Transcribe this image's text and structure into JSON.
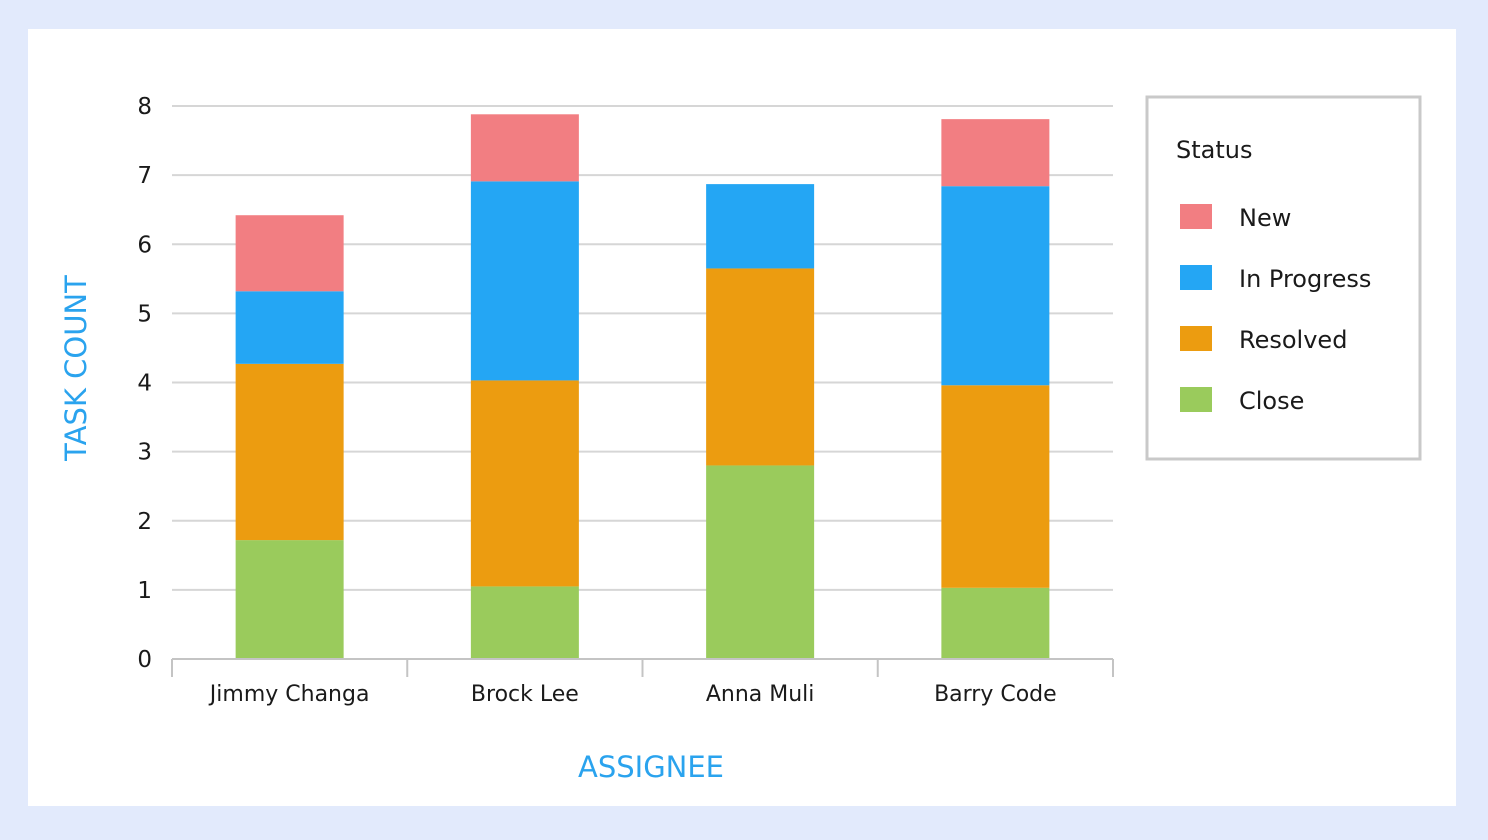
{
  "chart_data": {
    "type": "bar",
    "stacked": true,
    "categories": [
      "Jimmy Changa",
      "Brock Lee",
      "Anna Muli",
      "Barry Code"
    ],
    "series": [
      {
        "name": "Close",
        "color": "#9acb5c",
        "values": [
          1.72,
          1.05,
          2.8,
          1.03
        ]
      },
      {
        "name": "Resolved",
        "color": "#ec9c10",
        "values": [
          2.55,
          2.98,
          2.85,
          2.93
        ]
      },
      {
        "name": "In Progress",
        "color": "#24a6f4",
        "values": [
          1.05,
          2.88,
          1.22,
          2.88
        ]
      },
      {
        "name": "New",
        "color": "#f27e82",
        "values": [
          1.1,
          0.97,
          0,
          0.97
        ]
      }
    ],
    "xlabel": "ASSIGNEE",
    "ylabel": "TASK COUNT",
    "ylim": [
      0,
      8
    ],
    "yticks": [
      0,
      1,
      2,
      3,
      4,
      5,
      6,
      7,
      8
    ],
    "grid": true,
    "legend": {
      "title": "Status",
      "position": "right",
      "entries": [
        "New",
        "In Progress",
        "Resolved",
        "Close"
      ]
    },
    "axis_title_color": "#2aa3ee"
  }
}
